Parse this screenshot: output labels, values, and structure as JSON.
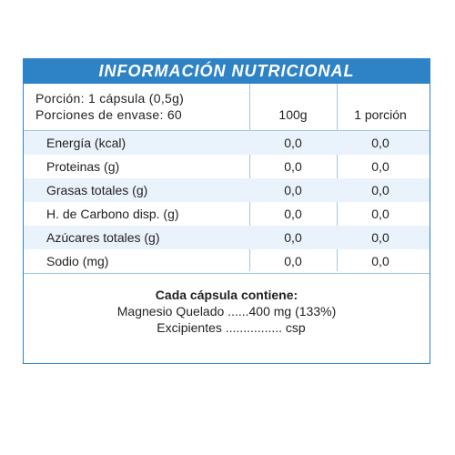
{
  "title": "INFORMACIÓN NUTRICIONAL",
  "serving": {
    "portion": "Porción: 1 cápsula (0,5g)",
    "per_container": "Porciones de envase: 60"
  },
  "columns": [
    "100g",
    "1 porción"
  ],
  "rows": [
    {
      "name": "Energía (kcal)",
      "per100": "0,0",
      "perPortion": "0,0"
    },
    {
      "name": "Proteinas (g)",
      "per100": "0,0",
      "perPortion": "0,0"
    },
    {
      "name": "Grasas totales (g)",
      "per100": "0,0",
      "perPortion": "0,0"
    },
    {
      "name": "H. de Carbono disp. (g)",
      "per100": "0,0",
      "perPortion": "0,0"
    },
    {
      "name": "Azúcares totales (g)",
      "per100": "0,0",
      "perPortion": "0,0"
    },
    {
      "name": "Sodio (mg)",
      "per100": "0,0",
      "perPortion": "0,0"
    }
  ],
  "composition": {
    "heading": "Cada cápsula contiene:",
    "line1": "Magnesio Quelado ......400 mg (133%)",
    "line2": "Excipientes ................ csp"
  },
  "colors": {
    "accent": "#2e82c6",
    "row_shade": "#eaf3fb",
    "rule": "#9fc7e6"
  }
}
